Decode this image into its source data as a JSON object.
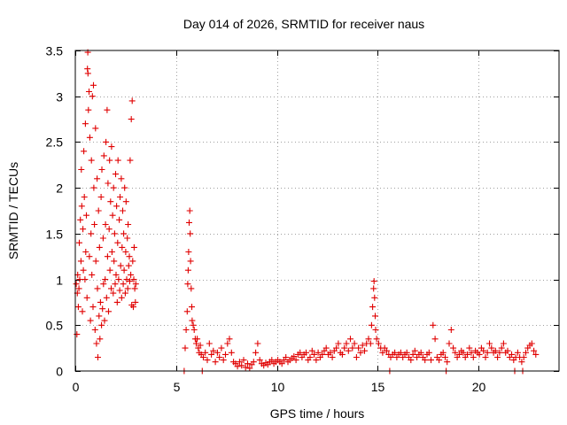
{
  "chart_data": {
    "type": "scatter",
    "title": "Day 014 of 2026, SRMTID for receiver naus",
    "xlabel": "GPS time / hours",
    "ylabel": "SRMTID / TECUs",
    "xlim": [
      0,
      24
    ],
    "ylim": [
      0,
      3.5
    ],
    "xticks": [
      0,
      5,
      10,
      15,
      20
    ],
    "yticks": [
      0,
      0.5,
      1,
      1.5,
      2,
      2.5,
      3,
      3.5
    ],
    "xtick_labels": [
      "0",
      "5",
      "10",
      "15",
      "20"
    ],
    "ytick_labels": [
      "0",
      "0.5",
      "1",
      "1.5",
      "2",
      "2.5",
      "3",
      "3.5"
    ],
    "grid": true,
    "marker": "+",
    "series": [
      {
        "name": "SRMTID",
        "color": "#e00000",
        "points": [
          [
            0.05,
            0.95
          ],
          [
            0.08,
            0.4
          ],
          [
            0.1,
            0.85
          ],
          [
            0.12,
            1.05
          ],
          [
            0.15,
            0.7
          ],
          [
            0.18,
            0.9
          ],
          [
            0.2,
            1.4
          ],
          [
            0.22,
            1.0
          ],
          [
            0.25,
            1.65
          ],
          [
            0.28,
            1.2
          ],
          [
            0.3,
            2.2
          ],
          [
            0.32,
            1.8
          ],
          [
            0.35,
            0.65
          ],
          [
            0.38,
            1.55
          ],
          [
            0.4,
            1.1
          ],
          [
            0.42,
            2.4
          ],
          [
            0.45,
            1.9
          ],
          [
            0.48,
            1.0
          ],
          [
            0.5,
            2.7
          ],
          [
            0.52,
            1.3
          ],
          [
            0.55,
            1.7
          ],
          [
            0.58,
            0.8
          ],
          [
            0.6,
            3.3
          ],
          [
            0.62,
            3.48
          ],
          [
            0.63,
            3.25
          ],
          [
            0.65,
            2.85
          ],
          [
            0.68,
            3.05
          ],
          [
            0.7,
            1.25
          ],
          [
            0.72,
            2.55
          ],
          [
            0.75,
            0.55
          ],
          [
            0.78,
            1.5
          ],
          [
            0.8,
            2.3
          ],
          [
            0.82,
            1.05
          ],
          [
            0.85,
            3.0
          ],
          [
            0.88,
            0.7
          ],
          [
            0.9,
            3.12
          ],
          [
            0.92,
            2.0
          ],
          [
            0.95,
            1.6
          ],
          [
            0.98,
            0.45
          ],
          [
            1.0,
            2.65
          ],
          [
            1.02,
            1.2
          ],
          [
            1.05,
            0.3
          ],
          [
            1.08,
            2.1
          ],
          [
            1.1,
            0.9
          ],
          [
            1.12,
            0.15
          ],
          [
            1.15,
            1.75
          ],
          [
            1.18,
            0.6
          ],
          [
            1.2,
            1.35
          ],
          [
            1.22,
            0.35
          ],
          [
            1.25,
            0.75
          ],
          [
            1.28,
            1.9
          ],
          [
            1.3,
            0.5
          ],
          [
            1.32,
            2.2
          ],
          [
            1.35,
            0.68
          ],
          [
            1.38,
            1.45
          ],
          [
            1.4,
            0.95
          ],
          [
            1.42,
            2.35
          ],
          [
            1.45,
            0.55
          ],
          [
            1.48,
            1.0
          ],
          [
            1.5,
            1.6
          ],
          [
            1.52,
            2.5
          ],
          [
            1.55,
            0.8
          ],
          [
            1.58,
            2.85
          ],
          [
            1.6,
            1.25
          ],
          [
            1.62,
            2.05
          ],
          [
            1.65,
            0.65
          ],
          [
            1.68,
            1.55
          ],
          [
            1.7,
            2.3
          ],
          [
            1.72,
            1.1
          ],
          [
            1.75,
            1.85
          ],
          [
            1.78,
            0.9
          ],
          [
            1.8,
            2.45
          ],
          [
            1.82,
            1.3
          ],
          [
            1.85,
            1.7
          ],
          [
            1.88,
            0.85
          ],
          [
            1.9,
            2.0
          ],
          [
            1.92,
            1.2
          ],
          [
            1.95,
            1.5
          ],
          [
            1.98,
            0.95
          ],
          [
            2.0,
            2.15
          ],
          [
            2.02,
            1.05
          ],
          [
            2.05,
            1.8
          ],
          [
            2.08,
            0.75
          ],
          [
            2.1,
            1.4
          ],
          [
            2.12,
            2.3
          ],
          [
            2.15,
            1.0
          ],
          [
            2.18,
            1.65
          ],
          [
            2.2,
            0.88
          ],
          [
            2.22,
            1.9
          ],
          [
            2.25,
            1.15
          ],
          [
            2.28,
            2.1
          ],
          [
            2.3,
            0.8
          ],
          [
            2.32,
            1.35
          ],
          [
            2.35,
            1.75
          ],
          [
            2.38,
            0.95
          ],
          [
            2.4,
            1.5
          ],
          [
            2.42,
            1.1
          ],
          [
            2.45,
            2.0
          ],
          [
            2.48,
            0.85
          ],
          [
            2.5,
            1.3
          ],
          [
            2.52,
            1.85
          ],
          [
            2.55,
            1.0
          ],
          [
            2.58,
            1.45
          ],
          [
            2.6,
            0.9
          ],
          [
            2.62,
            1.6
          ],
          [
            2.65,
            1.15
          ],
          [
            2.68,
            1.25
          ],
          [
            2.7,
            0.98
          ],
          [
            2.72,
            2.3
          ],
          [
            2.75,
            1.05
          ],
          [
            2.78,
            2.75
          ],
          [
            2.8,
            0.72
          ],
          [
            2.82,
            2.95
          ],
          [
            2.85,
            1.2
          ],
          [
            2.88,
            0.7
          ],
          [
            2.9,
            1.0
          ],
          [
            2.92,
            1.35
          ],
          [
            2.95,
            0.9
          ],
          [
            2.98,
            0.75
          ],
          [
            3.0,
            0.95
          ],
          [
            5.4,
            0.0
          ],
          [
            5.45,
            0.25
          ],
          [
            5.5,
            0.45
          ],
          [
            5.55,
            0.65
          ],
          [
            5.58,
            0.95
          ],
          [
            5.6,
            1.1
          ],
          [
            5.62,
            1.3
          ],
          [
            5.65,
            1.62
          ],
          [
            5.68,
            1.75
          ],
          [
            5.7,
            1.5
          ],
          [
            5.72,
            1.2
          ],
          [
            5.75,
            0.9
          ],
          [
            5.78,
            0.7
          ],
          [
            5.8,
            0.55
          ],
          [
            5.85,
            0.5
          ],
          [
            5.9,
            0.45
          ],
          [
            5.95,
            0.35
          ],
          [
            6.0,
            0.3
          ],
          [
            6.05,
            0.35
          ],
          [
            6.1,
            0.25
          ],
          [
            6.15,
            0.2
          ],
          [
            6.2,
            0.28
          ],
          [
            6.25,
            0.18
          ],
          [
            6.3,
            0.0
          ],
          [
            6.35,
            0.15
          ],
          [
            6.45,
            0.2
          ],
          [
            6.55,
            0.12
          ],
          [
            6.65,
            0.3
          ],
          [
            6.75,
            0.18
          ],
          [
            6.85,
            0.22
          ],
          [
            6.95,
            0.1
          ],
          [
            7.05,
            0.2
          ],
          [
            7.15,
            0.15
          ],
          [
            7.25,
            0.25
          ],
          [
            7.35,
            0.12
          ],
          [
            7.45,
            0.18
          ],
          [
            7.55,
            0.3
          ],
          [
            7.65,
            0.35
          ],
          [
            7.75,
            0.2
          ],
          [
            7.85,
            0.1
          ],
          [
            7.95,
            0.08
          ],
          [
            8.05,
            0.05
          ],
          [
            8.15,
            0.1
          ],
          [
            8.25,
            0.06
          ],
          [
            8.35,
            0.12
          ],
          [
            8.45,
            0.04
          ],
          [
            8.55,
            0.08
          ],
          [
            8.65,
            0.03
          ],
          [
            8.75,
            0.07
          ],
          [
            8.85,
            0.1
          ],
          [
            8.95,
            0.2
          ],
          [
            9.05,
            0.3
          ],
          [
            9.15,
            0.12
          ],
          [
            9.25,
            0.08
          ],
          [
            9.35,
            0.06
          ],
          [
            9.45,
            0.09
          ],
          [
            9.55,
            0.07
          ],
          [
            9.65,
            0.1
          ],
          [
            9.75,
            0.12
          ],
          [
            9.85,
            0.08
          ],
          [
            9.95,
            0.1
          ],
          [
            10.05,
            0.12
          ],
          [
            10.15,
            0.1
          ],
          [
            10.25,
            0.08
          ],
          [
            10.35,
            0.12
          ],
          [
            10.45,
            0.15
          ],
          [
            10.55,
            0.1
          ],
          [
            10.65,
            0.12
          ],
          [
            10.75,
            0.14
          ],
          [
            10.85,
            0.16
          ],
          [
            10.95,
            0.12
          ],
          [
            11.05,
            0.18
          ],
          [
            11.15,
            0.2
          ],
          [
            11.25,
            0.15
          ],
          [
            11.35,
            0.18
          ],
          [
            11.45,
            0.2
          ],
          [
            11.55,
            0.12
          ],
          [
            11.65,
            0.15
          ],
          [
            11.75,
            0.22
          ],
          [
            11.85,
            0.18
          ],
          [
            11.95,
            0.12
          ],
          [
            12.05,
            0.2
          ],
          [
            12.15,
            0.15
          ],
          [
            12.25,
            0.18
          ],
          [
            12.35,
            0.22
          ],
          [
            12.45,
            0.25
          ],
          [
            12.55,
            0.18
          ],
          [
            12.65,
            0.2
          ],
          [
            12.75,
            0.15
          ],
          [
            12.85,
            0.22
          ],
          [
            12.95,
            0.25
          ],
          [
            13.05,
            0.3
          ],
          [
            13.15,
            0.2
          ],
          [
            13.25,
            0.18
          ],
          [
            13.35,
            0.25
          ],
          [
            13.45,
            0.3
          ],
          [
            13.55,
            0.22
          ],
          [
            13.65,
            0.35
          ],
          [
            13.75,
            0.25
          ],
          [
            13.85,
            0.3
          ],
          [
            13.95,
            0.15
          ],
          [
            14.05,
            0.25
          ],
          [
            14.15,
            0.2
          ],
          [
            14.25,
            0.28
          ],
          [
            14.35,
            0.22
          ],
          [
            14.45,
            0.3
          ],
          [
            14.55,
            0.35
          ],
          [
            14.65,
            0.3
          ],
          [
            14.7,
            0.5
          ],
          [
            14.75,
            0.7
          ],
          [
            14.8,
            0.9
          ],
          [
            14.82,
            0.98
          ],
          [
            14.85,
            0.8
          ],
          [
            14.88,
            0.6
          ],
          [
            14.9,
            0.45
          ],
          [
            14.95,
            0.35
          ],
          [
            15.05,
            0.3
          ],
          [
            15.15,
            0.25
          ],
          [
            15.25,
            0.2
          ],
          [
            15.35,
            0.25
          ],
          [
            15.45,
            0.22
          ],
          [
            15.55,
            0.18
          ],
          [
            15.6,
            0.0
          ],
          [
            15.65,
            0.15
          ],
          [
            15.75,
            0.18
          ],
          [
            15.85,
            0.2
          ],
          [
            15.95,
            0.15
          ],
          [
            16.05,
            0.18
          ],
          [
            16.15,
            0.2
          ],
          [
            16.25,
            0.15
          ],
          [
            16.35,
            0.18
          ],
          [
            16.45,
            0.2
          ],
          [
            16.55,
            0.15
          ],
          [
            16.65,
            0.12
          ],
          [
            16.75,
            0.18
          ],
          [
            16.85,
            0.22
          ],
          [
            16.95,
            0.15
          ],
          [
            17.05,
            0.18
          ],
          [
            17.15,
            0.2
          ],
          [
            17.25,
            0.15
          ],
          [
            17.35,
            0.12
          ],
          [
            17.45,
            0.18
          ],
          [
            17.55,
            0.2
          ],
          [
            17.65,
            0.12
          ],
          [
            17.75,
            0.5
          ],
          [
            17.85,
            0.35
          ],
          [
            17.95,
            0.15
          ],
          [
            18.05,
            0.12
          ],
          [
            18.15,
            0.18
          ],
          [
            18.25,
            0.2
          ],
          [
            18.35,
            0.15
          ],
          [
            18.4,
            0.0
          ],
          [
            18.45,
            0.1
          ],
          [
            18.55,
            0.3
          ],
          [
            18.65,
            0.45
          ],
          [
            18.75,
            0.25
          ],
          [
            18.85,
            0.2
          ],
          [
            18.95,
            0.15
          ],
          [
            19.05,
            0.18
          ],
          [
            19.15,
            0.22
          ],
          [
            19.25,
            0.2
          ],
          [
            19.35,
            0.15
          ],
          [
            19.45,
            0.18
          ],
          [
            19.55,
            0.25
          ],
          [
            19.65,
            0.2
          ],
          [
            19.75,
            0.15
          ],
          [
            19.85,
            0.22
          ],
          [
            19.95,
            0.2
          ],
          [
            20.05,
            0.18
          ],
          [
            20.15,
            0.25
          ],
          [
            20.25,
            0.22
          ],
          [
            20.35,
            0.15
          ],
          [
            20.45,
            0.2
          ],
          [
            20.55,
            0.3
          ],
          [
            20.65,
            0.25
          ],
          [
            20.75,
            0.2
          ],
          [
            20.85,
            0.22
          ],
          [
            20.95,
            0.15
          ],
          [
            21.05,
            0.2
          ],
          [
            21.15,
            0.25
          ],
          [
            21.25,
            0.3
          ],
          [
            21.35,
            0.2
          ],
          [
            21.45,
            0.22
          ],
          [
            21.55,
            0.15
          ],
          [
            21.65,
            0.18
          ],
          [
            21.75,
            0.12
          ],
          [
            21.8,
            0.0
          ],
          [
            21.85,
            0.15
          ],
          [
            21.95,
            0.2
          ],
          [
            22.05,
            0.15
          ],
          [
            22.15,
            0.1
          ],
          [
            22.2,
            0.0
          ],
          [
            22.25,
            0.15
          ],
          [
            22.35,
            0.2
          ],
          [
            22.45,
            0.25
          ],
          [
            22.55,
            0.28
          ],
          [
            22.65,
            0.3
          ],
          [
            22.75,
            0.22
          ],
          [
            22.85,
            0.18
          ]
        ]
      }
    ]
  }
}
